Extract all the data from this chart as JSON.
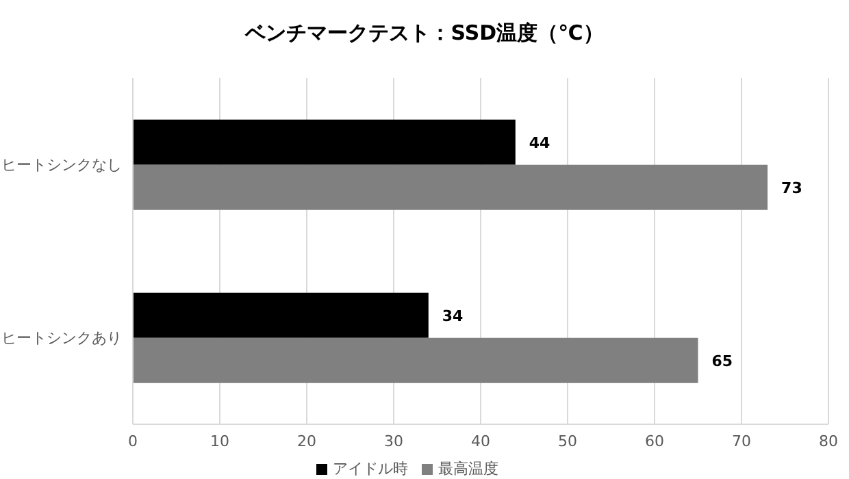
{
  "chart_data": {
    "type": "bar",
    "orientation": "horizontal",
    "title": "ベンチマークテスト：SSD温度（℃）",
    "categories": [
      "ヒートシンクなし",
      "ヒートシンクあり"
    ],
    "series": [
      {
        "name": "アイドル時",
        "color": "#000000",
        "values": [
          44,
          34
        ]
      },
      {
        "name": "最高温度",
        "color": "#808080",
        "values": [
          73,
          65
        ]
      }
    ],
    "xlim": [
      0,
      80
    ],
    "xticks": [
      0,
      10,
      20,
      30,
      40,
      50,
      60,
      70,
      80
    ],
    "grid": "x",
    "legend": "bottom",
    "data_labels": true
  }
}
